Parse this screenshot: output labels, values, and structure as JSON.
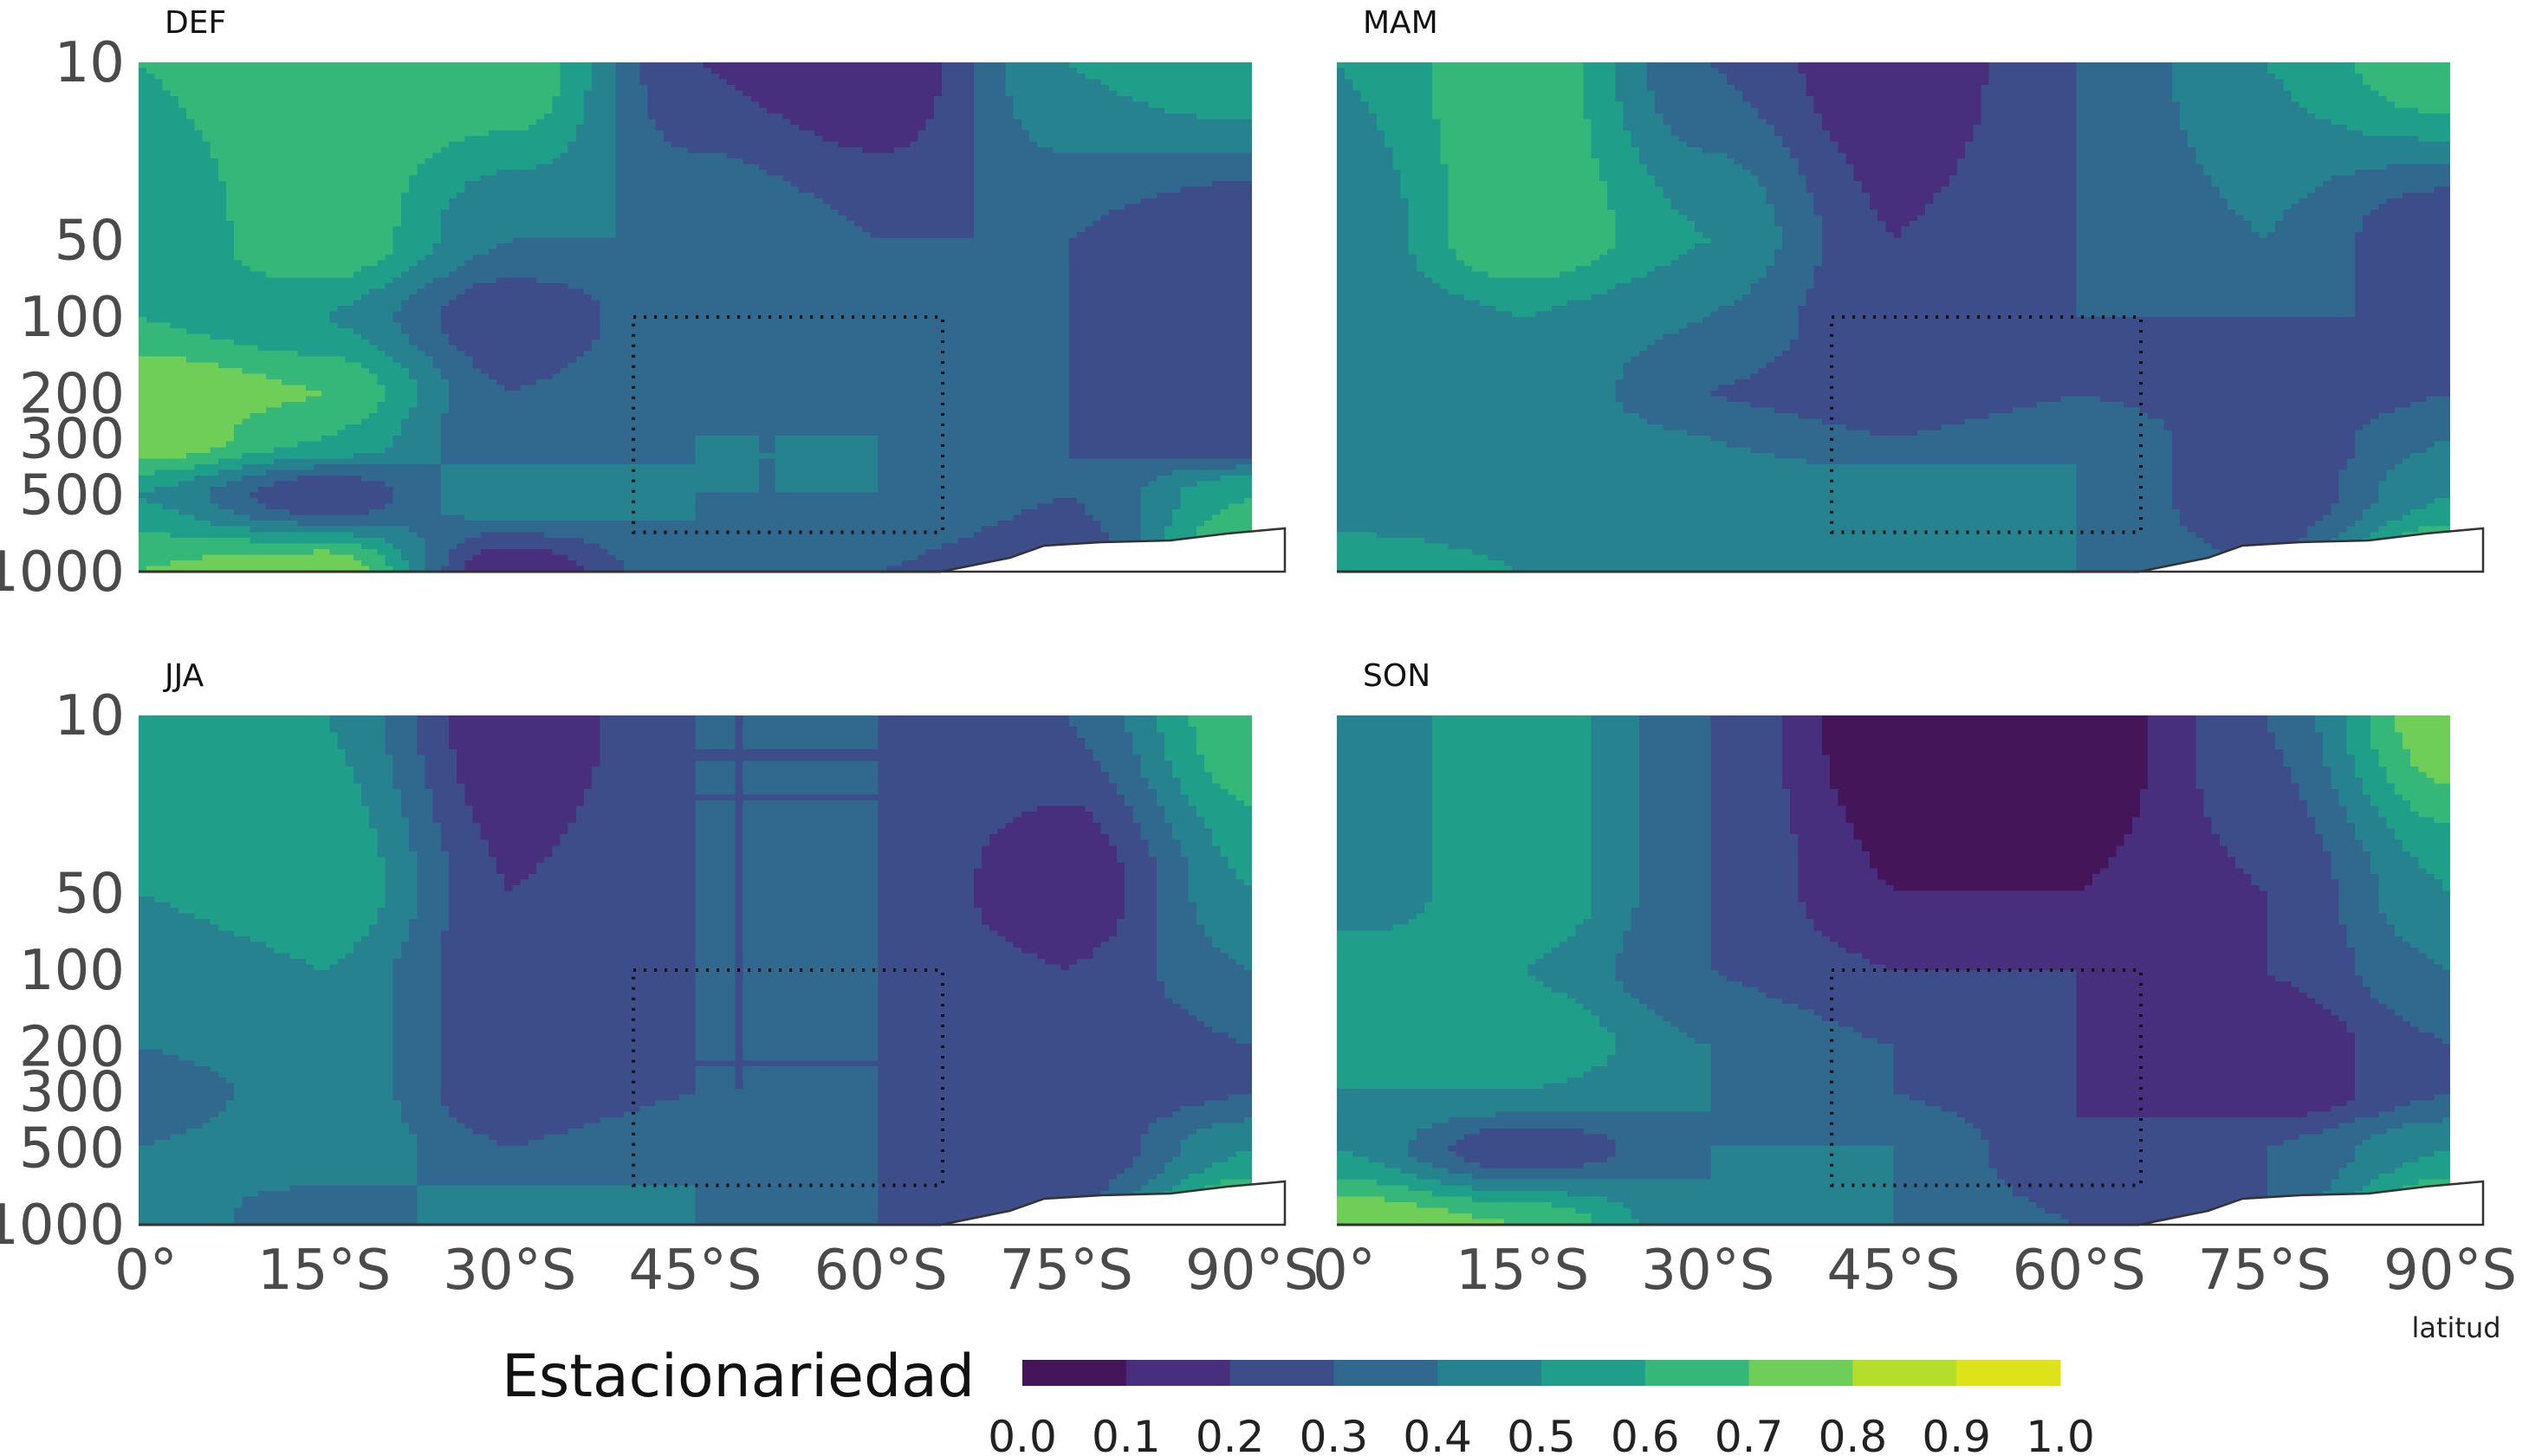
{
  "chart_data": {
    "type": "heatmap",
    "xlabel": "latitud",
    "x_ticks": [
      "0°",
      "15°S",
      "30°S",
      "45°S",
      "60°S",
      "75°S",
      "90°S"
    ],
    "y_ticks": [
      "10",
      "50",
      "100",
      "200",
      "300",
      "500",
      "1000"
    ],
    "y_scale": "log",
    "ylim": [
      1000,
      10
    ],
    "x_range_deg_south": [
      0,
      90
    ],
    "levels": [
      0.0,
      0.1,
      0.2,
      0.3,
      0.4,
      0.5,
      0.6,
      0.7,
      0.8,
      0.9,
      1.0
    ],
    "level_colors": [
      "#451559",
      "#472f7d",
      "#3c4d8a",
      "#31688e",
      "#26828e",
      "#1f9e89",
      "#35b779",
      "#6ece58",
      "#b5de2b",
      "#dde318"
    ],
    "colorbar": {
      "title": "Estacionariedad",
      "tick_labels": [
        "0.0",
        "0.1",
        "0.2",
        "0.3",
        "0.4",
        "0.5",
        "0.6",
        "0.7",
        "0.8",
        "0.9",
        "1.0"
      ]
    },
    "highlight_box": {
      "lat_from": 40,
      "lat_to": 65,
      "p_top": 100,
      "p_bottom": 700
    },
    "panels": [
      {
        "title": "DEF",
        "grid_lat": [
          0,
          15,
          30,
          45,
          60,
          75,
          90
        ],
        "grid_p": [
          10,
          50,
          100,
          200,
          300,
          500,
          1000
        ],
        "values": [
          [
            0.6,
            0.7,
            0.7,
            0.2,
            0.1,
            0.5,
            0.6
          ],
          [
            0.5,
            0.7,
            0.4,
            0.4,
            0.3,
            0.3,
            0.2
          ],
          [
            0.6,
            0.5,
            0.2,
            0.4,
            0.4,
            0.3,
            0.2
          ],
          [
            0.8,
            0.7,
            0.3,
            0.4,
            0.3,
            0.3,
            0.2
          ],
          [
            0.8,
            0.6,
            0.3,
            0.4,
            0.4,
            0.3,
            0.2
          ],
          [
            0.5,
            0.2,
            0.5,
            0.4,
            0.4,
            0.3,
            0.6
          ],
          [
            0.7,
            0.8,
            0.1,
            0.4,
            0.3,
            0.2,
            0.8
          ]
        ]
      },
      {
        "title": "MAM",
        "grid_lat": [
          0,
          15,
          30,
          45,
          60,
          75,
          90
        ],
        "grid_p": [
          10,
          50,
          100,
          200,
          300,
          500,
          1000
        ],
        "values": [
          [
            0.5,
            0.7,
            0.3,
            0.1,
            0.3,
            0.5,
            0.7
          ],
          [
            0.4,
            0.7,
            0.5,
            0.2,
            0.3,
            0.4,
            0.2
          ],
          [
            0.4,
            0.5,
            0.4,
            0.2,
            0.3,
            0.3,
            0.3
          ],
          [
            0.5,
            0.5,
            0.3,
            0.2,
            0.3,
            0.2,
            0.3
          ],
          [
            0.4,
            0.5,
            0.4,
            0.3,
            0.4,
            0.2,
            0.4
          ],
          [
            0.4,
            0.4,
            0.5,
            0.5,
            0.4,
            0.2,
            0.5
          ],
          [
            0.6,
            0.5,
            0.4,
            0.4,
            0.4,
            0.3,
            0.8
          ]
        ]
      },
      {
        "title": "JJA",
        "grid_lat": [
          0,
          15,
          30,
          45,
          60,
          75,
          90
        ],
        "grid_p": [
          10,
          50,
          100,
          200,
          300,
          500,
          1000
        ],
        "values": [
          [
            0.5,
            0.5,
            0.1,
            0.3,
            0.3,
            0.3,
            0.7
          ],
          [
            0.5,
            0.6,
            0.2,
            0.3,
            0.3,
            0.1,
            0.5
          ],
          [
            0.4,
            0.5,
            0.2,
            0.3,
            0.3,
            0.2,
            0.4
          ],
          [
            0.4,
            0.5,
            0.2,
            0.3,
            0.3,
            0.2,
            0.3
          ],
          [
            0.3,
            0.5,
            0.2,
            0.3,
            0.3,
            0.2,
            0.3
          ],
          [
            0.4,
            0.5,
            0.3,
            0.4,
            0.3,
            0.2,
            0.5
          ],
          [
            0.5,
            0.3,
            0.5,
            0.4,
            0.3,
            0.3,
            0.8
          ]
        ]
      },
      {
        "title": "SON",
        "grid_lat": [
          0,
          15,
          30,
          45,
          60,
          75,
          90
        ],
        "grid_p": [
          10,
          50,
          100,
          200,
          300,
          500,
          1000
        ],
        "values": [
          [
            0.4,
            0.6,
            0.3,
            0.0,
            0.0,
            0.3,
            0.8
          ],
          [
            0.4,
            0.6,
            0.3,
            0.1,
            0.1,
            0.2,
            0.5
          ],
          [
            0.6,
            0.5,
            0.3,
            0.2,
            0.2,
            0.2,
            0.4
          ],
          [
            0.6,
            0.6,
            0.4,
            0.3,
            0.2,
            0.1,
            0.3
          ],
          [
            0.5,
            0.5,
            0.4,
            0.3,
            0.2,
            0.1,
            0.3
          ],
          [
            0.5,
            0.2,
            0.4,
            0.4,
            0.2,
            0.3,
            0.5
          ],
          [
            0.8,
            0.7,
            0.4,
            0.4,
            0.3,
            0.3,
            0.8
          ]
        ]
      }
    ]
  }
}
